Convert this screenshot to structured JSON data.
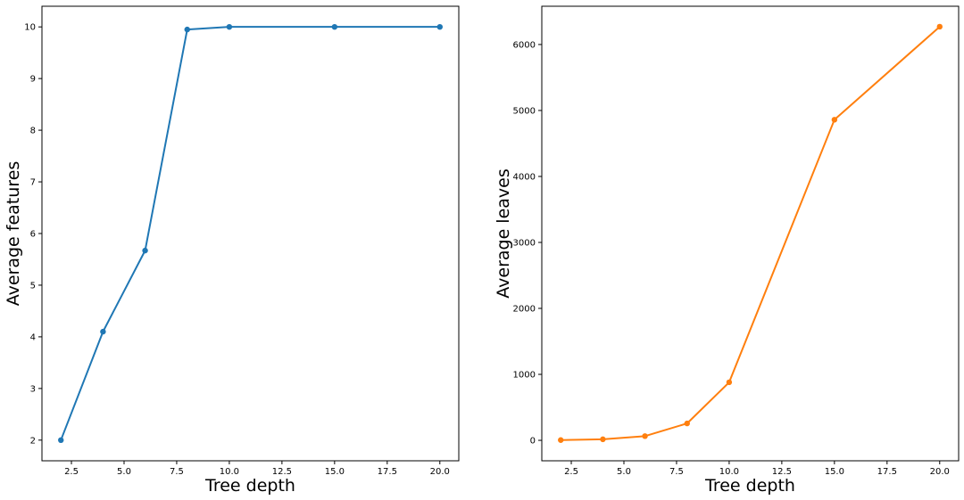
{
  "chart_data": [
    {
      "type": "line",
      "title": "",
      "xlabel": "Tree depth",
      "ylabel": "Average features",
      "x": [
        2,
        4,
        6,
        8,
        10,
        15,
        20
      ],
      "series": [
        {
          "name": "Average features",
          "values": [
            2.0,
            4.1,
            5.67,
            9.95,
            10.0,
            10.0,
            10.0
          ],
          "color": "#1f77b4"
        }
      ],
      "xlim": [
        1.1,
        20.9
      ],
      "ylim": [
        1.6,
        10.4
      ],
      "xticks": [
        2.5,
        5.0,
        7.5,
        10.0,
        12.5,
        15.0,
        17.5,
        20.0
      ],
      "xtick_labels": [
        "2.5",
        "5.0",
        "7.5",
        "10.0",
        "12.5",
        "15.0",
        "17.5",
        "20.0"
      ],
      "yticks": [
        2,
        3,
        4,
        5,
        6,
        7,
        8,
        9,
        10
      ],
      "ytick_labels": [
        "2",
        "3",
        "4",
        "5",
        "6",
        "7",
        "8",
        "9",
        "10"
      ],
      "grid": false,
      "legend": "none"
    },
    {
      "type": "line",
      "title": "",
      "xlabel": "Tree depth",
      "ylabel": "Average leaves",
      "x": [
        2,
        4,
        6,
        8,
        10,
        15,
        20
      ],
      "series": [
        {
          "name": "Average leaves",
          "values": [
            4,
            16,
            64,
            256,
            880,
            4860,
            6270
          ],
          "color": "#ff7f0e"
        }
      ],
      "xlim": [
        1.1,
        20.9
      ],
      "ylim": [
        -310,
        6580
      ],
      "xticks": [
        2.5,
        5.0,
        7.5,
        10.0,
        12.5,
        15.0,
        17.5,
        20.0
      ],
      "xtick_labels": [
        "2.5",
        "5.0",
        "7.5",
        "10.0",
        "12.5",
        "15.0",
        "17.5",
        "20.0"
      ],
      "yticks": [
        0,
        1000,
        2000,
        3000,
        4000,
        5000,
        6000
      ],
      "ytick_labels": [
        "0",
        "1000",
        "2000",
        "3000",
        "4000",
        "5000",
        "6000"
      ],
      "grid": false,
      "legend": "none"
    }
  ]
}
